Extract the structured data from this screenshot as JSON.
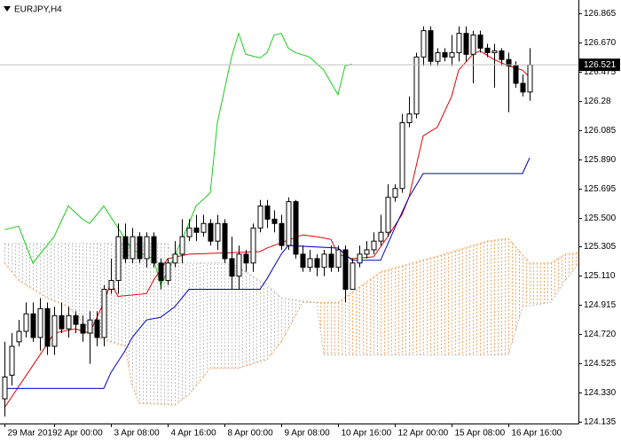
{
  "chart_data": {
    "type": "candlestick",
    "title": "EURJPY,H4",
    "xlim": [
      -0.625,
      80.875
    ],
    "ylim": [
      124.123,
      126.954
    ],
    "yticks": [
      126.865,
      {
        "value": 126.67,
        "label": "126.670"
      },
      126.475,
      126.28,
      126.085,
      {
        "value": 125.89,
        "label": "125.890"
      },
      125.695,
      {
        "value": 125.5,
        "label": "125.500"
      },
      125.305,
      {
        "value": 125.11,
        "label": "125.110"
      },
      124.915,
      {
        "value": 124.72,
        "label": "124.720"
      },
      124.525,
      {
        "value": 124.33,
        "label": "124.330"
      },
      124.135
    ],
    "xticks": [
      {
        "value": 0,
        "label": "29 Mar 2019"
      },
      {
        "value": 7,
        "label": "2 Apr 00:00"
      },
      {
        "value": 15,
        "label": "3 Apr 08:00"
      },
      {
        "value": 23,
        "label": "4 Apr 16:00"
      },
      {
        "value": 31,
        "label": "8 Apr 00:00"
      },
      {
        "value": 39,
        "label": "9 Apr 08:00"
      },
      {
        "value": 47,
        "label": "10 Apr 16:00"
      },
      {
        "value": 55,
        "label": "12 Apr 00:00"
      },
      {
        "value": 63,
        "label": "15 Apr 08:00"
      },
      {
        "value": 71,
        "label": "16 Apr 16:00"
      }
    ],
    "up_color": "#ffffff",
    "down_color": "#000000",
    "wick_color": "#000000",
    "last_price": 126.521,
    "open": [
      124.288,
      124.446,
      124.669,
      124.739,
      124.856,
      124.698,
      124.891,
      124.639,
      124.844,
      124.756,
      124.844,
      124.786,
      124.727,
      124.815,
      124.698,
      125.02,
      125.079,
      125.372,
      125.225,
      125.372,
      125.225,
      125.372,
      125.196,
      125.079,
      125.196,
      125.255,
      125.372,
      125.43,
      125.401,
      125.46,
      125.342,
      125.46,
      125.225,
      125.108,
      125.255,
      125.196,
      125.43,
      125.577,
      125.489,
      125.46,
      125.313,
      125.606,
      125.255,
      125.167,
      125.225,
      125.167,
      125.255,
      125.167,
      125.284,
      125.02,
      125.196,
      125.255,
      125.284,
      125.342,
      125.401,
      125.635,
      125.694,
      126.134,
      126.192,
      126.573,
      126.749,
      126.544,
      126.602,
      126.573,
      126.602,
      126.731,
      126.591,
      126.72,
      126.632,
      126.602,
      126.614,
      126.556,
      126.514,
      126.397,
      126.339
    ],
    "high": [
      124.669,
      124.727,
      124.815,
      124.932,
      124.932,
      124.962,
      124.932,
      124.903,
      124.932,
      124.903,
      124.874,
      124.844,
      124.874,
      124.874,
      125.049,
      125.225,
      125.46,
      125.46,
      125.43,
      125.401,
      125.401,
      125.401,
      125.225,
      125.225,
      125.342,
      125.489,
      125.489,
      125.518,
      125.518,
      125.489,
      125.518,
      125.489,
      125.372,
      125.313,
      125.284,
      125.46,
      125.618,
      125.618,
      125.548,
      125.518,
      125.635,
      125.618,
      125.313,
      125.284,
      125.255,
      125.284,
      125.313,
      125.313,
      125.313,
      125.225,
      125.313,
      125.342,
      125.401,
      125.518,
      125.723,
      125.723,
      126.192,
      126.309,
      126.602,
      126.778,
      126.778,
      126.632,
      126.632,
      126.72,
      126.778,
      126.778,
      126.749,
      126.749,
      126.661,
      126.661,
      126.632,
      126.602,
      126.544,
      126.456,
      126.632
    ],
    "low": [
      124.17,
      124.376,
      124.639,
      124.698,
      124.669,
      124.61,
      124.581,
      124.581,
      124.727,
      124.698,
      124.727,
      124.669,
      124.522,
      124.639,
      124.639,
      124.991,
      124.991,
      125.196,
      125.196,
      125.196,
      125.167,
      125.167,
      125.02,
      125.049,
      125.167,
      125.196,
      125.342,
      125.342,
      125.372,
      125.313,
      125.284,
      125.196,
      125.02,
      125.02,
      125.137,
      125.137,
      125.401,
      125.43,
      125.401,
      125.284,
      125.284,
      125.225,
      125.137,
      125.137,
      125.108,
      125.108,
      125.137,
      125.137,
      124.932,
      125.02,
      125.167,
      125.225,
      125.255,
      125.313,
      125.372,
      125.606,
      125.665,
      126.104,
      126.163,
      126.514,
      126.514,
      126.514,
      126.544,
      126.514,
      126.544,
      126.544,
      126.397,
      126.602,
      126.573,
      126.368,
      126.514,
      126.204,
      126.368,
      126.309,
      126.28
    ],
    "close": [
      124.434,
      124.639,
      124.739,
      124.856,
      124.698,
      124.891,
      124.639,
      124.844,
      124.756,
      124.844,
      124.786,
      124.727,
      124.815,
      124.698,
      125.02,
      125.079,
      125.372,
      125.225,
      125.372,
      125.225,
      125.372,
      125.196,
      125.079,
      125.196,
      125.255,
      125.372,
      125.43,
      125.401,
      125.46,
      125.342,
      125.46,
      125.225,
      125.108,
      125.255,
      125.196,
      125.43,
      125.577,
      125.489,
      125.46,
      125.313,
      125.606,
      125.255,
      125.167,
      125.225,
      125.167,
      125.255,
      125.167,
      125.284,
      125.02,
      125.196,
      125.255,
      125.284,
      125.342,
      125.401,
      125.635,
      125.694,
      126.134,
      126.192,
      126.573,
      126.749,
      126.544,
      126.602,
      126.573,
      126.602,
      126.731,
      126.591,
      126.72,
      126.632,
      126.602,
      126.614,
      126.556,
      126.514,
      126.397,
      126.339,
      126.52
    ],
    "lines": [
      {
        "color": "#e00000",
        "x": [
          0,
          5,
          7,
          10,
          12,
          14,
          15,
          16,
          20,
          21,
          23,
          26,
          36,
          37,
          42,
          44,
          46,
          47,
          49,
          52,
          54,
          56,
          57,
          59,
          61,
          63,
          64,
          66,
          67,
          69,
          71,
          73,
          74
        ],
        "values": [
          124.229,
          124.581,
          124.727,
          124.756,
          124.727,
          124.932,
          125.067,
          124.973,
          124.991,
          125.079,
          125.225,
          125.255,
          125.272,
          125.296,
          125.384,
          125.372,
          125.354,
          125.255,
          125.225,
          125.237,
          125.372,
          125.518,
          125.635,
          126.046,
          126.104,
          126.309,
          126.485,
          126.591,
          126.614,
          126.556,
          126.514,
          126.485,
          126.438
        ]
      },
      {
        "color": "#0000c8",
        "x": [
          0,
          14,
          15,
          17,
          18,
          20,
          22,
          24,
          26,
          36,
          37,
          39,
          40,
          47,
          49,
          53,
          55,
          57,
          59,
          73,
          74
        ],
        "values": [
          124.358,
          124.358,
          124.463,
          124.61,
          124.698,
          124.815,
          124.833,
          124.903,
          125.02,
          125.02,
          125.091,
          125.255,
          125.313,
          125.296,
          125.214,
          125.214,
          125.43,
          125.635,
          125.794,
          125.794,
          125.899
        ]
      },
      {
        "color": "#1ccc1c",
        "x": [
          0,
          2,
          4,
          7,
          9,
          11,
          12,
          14,
          16,
          18,
          21,
          22,
          23,
          26,
          27,
          29,
          30,
          32,
          33,
          34,
          36,
          37,
          38,
          39,
          40,
          41,
          43,
          45,
          47,
          48,
          49
        ],
        "values": [
          125.419,
          125.442,
          125.196,
          125.372,
          125.577,
          125.489,
          125.46,
          125.577,
          125.43,
          125.284,
          125.225,
          125.049,
          125.137,
          125.46,
          125.577,
          125.665,
          126.134,
          126.573,
          126.731,
          126.591,
          126.567,
          126.602,
          126.72,
          126.731,
          126.632,
          126.602,
          126.573,
          126.485,
          126.321,
          126.514,
          126.526
        ]
      }
    ],
    "cloud": {
      "span_a": {
        "color": "#f4a460",
        "x": [
          0,
          2,
          6,
          9,
          13,
          17,
          18,
          19,
          24,
          26,
          29,
          33,
          37,
          39,
          42,
          44,
          47,
          53,
          62,
          68,
          71,
          74,
          77,
          79,
          81
        ],
        "values": [
          125.196,
          125.079,
          124.962,
          124.903,
          124.698,
          124.639,
          124.376,
          124.258,
          124.247,
          124.317,
          124.493,
          124.493,
          124.551,
          124.669,
          124.932,
          124.932,
          124.932,
          125.137,
          125.255,
          125.342,
          125.36,
          125.196,
          125.196,
          125.255,
          125.266
        ]
      },
      "span_b": {
        "color": "#bdbdbd",
        "x": [
          0,
          23,
          24,
          32,
          37,
          39,
          44,
          45,
          71,
          73,
          77,
          79,
          81
        ],
        "values": [
          125.325,
          125.325,
          125.196,
          125.196,
          125.049,
          124.962,
          124.932,
          124.581,
          124.581,
          124.903,
          124.932,
          125.079,
          125.196
        ]
      }
    }
  }
}
